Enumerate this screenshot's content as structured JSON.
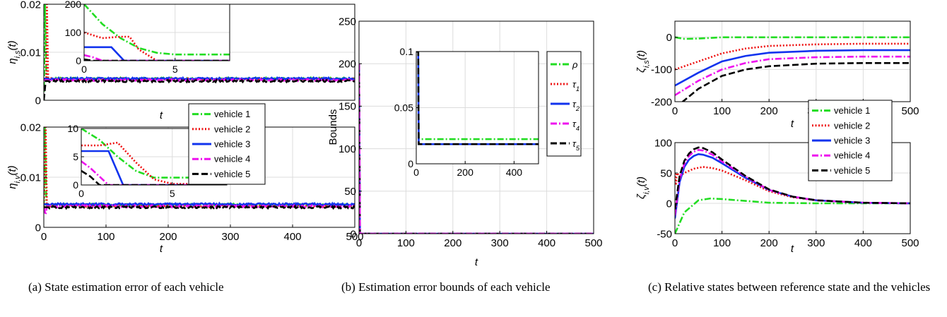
{
  "figure": {
    "captions": [
      "(a) State estimation error of each vehicle",
      "(b) Estimation error bounds of each vehicle",
      "(c) Relative states between reference state and the vehicles"
    ]
  },
  "colors": {
    "vehicle1": "#22dd22",
    "vehicle2": "#ee1111",
    "vehicle3": "#1133ee",
    "vehicle4": "#ee11ee",
    "vehicle5": "#000000",
    "grid": "#dcdcdc",
    "axis": "#000000"
  },
  "chart_data": [
    {
      "id": "a-top",
      "type": "line",
      "xlabel": "t",
      "ylabel": "η_{i,s}(t)",
      "xlim": [
        0,
        500
      ],
      "ylim": [
        0,
        0.02
      ],
      "xticks": [],
      "xtick_labels": [],
      "yticks": [
        0,
        0.01,
        0.02
      ],
      "ytick_labels": [
        "0",
        "0.01",
        "0.02"
      ],
      "grid": true,
      "series": [
        {
          "key": "vehicle1",
          "style": "dashdot",
          "x": [
            0,
            2,
            4,
            6,
            500
          ],
          "y": [
            0,
            0.02,
            0.0045,
            0.0045,
            0.0045
          ]
        },
        {
          "key": "vehicle2",
          "style": "dotted",
          "x": [
            0,
            4,
            5,
            7,
            500
          ],
          "y": [
            0.0045,
            0.0045,
            0.02,
            0.0044,
            0.0044
          ]
        },
        {
          "key": "vehicle3",
          "style": "solid",
          "x": [
            0,
            500
          ],
          "y": [
            0.0045,
            0.0045
          ]
        },
        {
          "key": "vehicle4",
          "style": "dashdot",
          "x": [
            0,
            500
          ],
          "y": [
            0.0042,
            0.0042
          ]
        },
        {
          "key": "vehicle5",
          "style": "dashed",
          "x": [
            0,
            3,
            500
          ],
          "y": [
            0,
            0.004,
            0.004
          ]
        }
      ],
      "noise": 0.0004,
      "inset": {
        "xlim": [
          0,
          8
        ],
        "ylim": [
          0,
          200
        ],
        "xticks": [
          0,
          5
        ],
        "xtick_labels": [
          "0",
          "5"
        ],
        "yticks": [
          0,
          100,
          200
        ],
        "ytick_labels": [
          "0",
          "100",
          "200"
        ],
        "series": [
          {
            "key": "vehicle1",
            "style": "dashdot",
            "x": [
              0,
              1,
              2,
              3,
              4,
              5,
              8
            ],
            "y": [
              200,
              130,
              80,
              45,
              28,
              22,
              22
            ]
          },
          {
            "key": "vehicle2",
            "style": "dotted",
            "x": [
              0,
              1,
              2,
              2.5,
              3,
              4,
              8
            ],
            "y": [
              100,
              80,
              85,
              85,
              40,
              0,
              0
            ]
          },
          {
            "key": "vehicle3",
            "style": "solid",
            "x": [
              0,
              1.5,
              2.2,
              8
            ],
            "y": [
              48,
              48,
              0,
              0
            ]
          },
          {
            "key": "vehicle4",
            "style": "dashdot",
            "x": [
              0,
              0.5,
              1,
              8
            ],
            "y": [
              20,
              12,
              0,
              0
            ]
          },
          {
            "key": "vehicle5",
            "style": "dashed",
            "x": [
              0,
              0.5,
              8
            ],
            "y": [
              5,
              0,
              0
            ]
          }
        ]
      }
    },
    {
      "id": "a-bottom",
      "type": "line",
      "xlabel": "t",
      "ylabel": "η_{i,v}(t)",
      "xlim": [
        0,
        500
      ],
      "ylim": [
        0,
        0.02
      ],
      "xticks": [
        0,
        100,
        200,
        300,
        400,
        500
      ],
      "xtick_labels": [
        "0",
        "100",
        "200",
        "300",
        "400",
        "500"
      ],
      "yticks": [
        0,
        0.01,
        0.02
      ],
      "ytick_labels": [
        "0",
        "0.01",
        "0.02"
      ],
      "grid": true,
      "legend": [
        "vehicle 1",
        "vehicle 2",
        "vehicle 3",
        "vehicle 4",
        "vehicle 5"
      ],
      "legend_keys": [
        "vehicle1",
        "vehicle2",
        "vehicle3",
        "vehicle4",
        "vehicle5"
      ],
      "legend_styles": [
        "dashdot",
        "dotted",
        "solid",
        "dashdot",
        "dashed"
      ],
      "legend_placement": "right, spanning both panels",
      "series": [
        {
          "key": "vehicle1",
          "style": "dashdot",
          "x": [
            0,
            2,
            4,
            500
          ],
          "y": [
            0.004,
            0.02,
            0.0045,
            0.0045
          ]
        },
        {
          "key": "vehicle2",
          "style": "dotted",
          "x": [
            0,
            3,
            5,
            500
          ],
          "y": [
            0.004,
            0.02,
            0.0043,
            0.0043
          ]
        },
        {
          "key": "vehicle3",
          "style": "solid",
          "x": [
            0,
            500
          ],
          "y": [
            0.0046,
            0.0046
          ]
        },
        {
          "key": "vehicle4",
          "style": "dashdot",
          "x": [
            0,
            3,
            5,
            500
          ],
          "y": [
            0.004,
            0.0025,
            0.0042,
            0.0042
          ]
        },
        {
          "key": "vehicle5",
          "style": "dashed",
          "x": [
            0,
            500
          ],
          "y": [
            0.004,
            0.004
          ]
        }
      ],
      "noise": 0.0004,
      "inset": {
        "xlim": [
          0,
          8
        ],
        "ylim": [
          0,
          10
        ],
        "xticks": [
          0,
          5
        ],
        "xtick_labels": [
          "0",
          "5"
        ],
        "yticks": [
          0,
          5,
          10
        ],
        "ytick_labels": [
          "0",
          "5",
          "10"
        ],
        "series": [
          {
            "key": "vehicle1",
            "style": "dashdot",
            "x": [
              0,
              1,
              2,
              3,
              4,
              8
            ],
            "y": [
              10,
              8,
              5,
              2.5,
              1.3,
              1.3
            ]
          },
          {
            "key": "vehicle2",
            "style": "dotted",
            "x": [
              0,
              1,
              2,
              3,
              4,
              5,
              8
            ],
            "y": [
              7,
              7,
              7.5,
              4,
              1,
              0.2,
              0.2
            ]
          },
          {
            "key": "vehicle3",
            "style": "solid",
            "x": [
              0,
              1.5,
              2.3,
              8
            ],
            "y": [
              6,
              6,
              0,
              0
            ]
          },
          {
            "key": "vehicle4",
            "style": "dashdot",
            "x": [
              0,
              0.5,
              1.5,
              8
            ],
            "y": [
              4.2,
              3,
              0,
              0
            ]
          },
          {
            "key": "vehicle5",
            "style": "dashed",
            "x": [
              0,
              0.5,
              1,
              8
            ],
            "y": [
              2.5,
              1.5,
              0,
              0
            ]
          }
        ]
      }
    },
    {
      "id": "b",
      "type": "line",
      "xlabel": "t",
      "ylabel": "Bounds",
      "xlim": [
        0,
        500
      ],
      "ylim": [
        0,
        250
      ],
      "xticks": [
        0,
        100,
        200,
        300,
        400,
        500
      ],
      "xtick_labels": [
        "0",
        "100",
        "200",
        "300",
        "400",
        "500"
      ],
      "yticks": [
        0,
        50,
        100,
        150,
        200,
        250
      ],
      "ytick_labels": [
        "0",
        "50",
        "100",
        "150",
        "200",
        "250"
      ],
      "grid": true,
      "legend": [
        "ρ",
        "τ_1",
        "τ_2",
        "τ_4",
        "τ_5"
      ],
      "legend_keys": [
        "vehicle1",
        "vehicle2",
        "vehicle3",
        "vehicle4",
        "vehicle5"
      ],
      "legend_styles": [
        "dashdot",
        "dotted",
        "solid",
        "dashdot",
        "dashed"
      ],
      "legend_placement": "right",
      "series": [
        {
          "key": "vehicle1",
          "style": "dashdot",
          "x": [
            0,
            2,
            500
          ],
          "y": [
            200,
            0,
            0
          ]
        },
        {
          "key": "vehicle2",
          "style": "dotted",
          "x": [
            0,
            2,
            500
          ],
          "y": [
            200,
            0,
            0
          ]
        },
        {
          "key": "vehicle3",
          "style": "solid",
          "x": [
            0,
            2,
            500
          ],
          "y": [
            200,
            0,
            0
          ]
        },
        {
          "key": "vehicle5",
          "style": "dashed",
          "x": [
            0,
            2,
            500
          ],
          "y": [
            200,
            0,
            0
          ]
        },
        {
          "key": "vehicle4",
          "style": "dashdot",
          "x": [
            0,
            2,
            500
          ],
          "y": [
            200,
            0,
            0
          ]
        }
      ],
      "inset": {
        "xlim": [
          0,
          500
        ],
        "ylim": [
          0,
          0.1
        ],
        "xticks": [
          0,
          200,
          400
        ],
        "xtick_labels": [
          "0",
          "200",
          "400"
        ],
        "yticks": [
          0,
          0.05,
          0.1
        ],
        "ytick_labels": [
          "0",
          "0.05",
          "0.1"
        ],
        "series": [
          {
            "key": "vehicle1",
            "style": "dashdot",
            "x": [
              0,
              8,
              10,
              500
            ],
            "y": [
              0.1,
              0.1,
              0.022,
              0.022
            ]
          },
          {
            "key": "vehicle3",
            "style": "solid",
            "x": [
              0,
              8,
              10,
              500
            ],
            "y": [
              0.1,
              0.1,
              0.0175,
              0.0175
            ]
          },
          {
            "key": "vehicle5",
            "style": "dashed",
            "x": [
              0,
              8,
              10,
              500
            ],
            "y": [
              0.1,
              0.1,
              0.0175,
              0.0175
            ]
          }
        ]
      }
    },
    {
      "id": "c-top",
      "type": "line",
      "xlabel": "t",
      "ylabel": "ζ_{i,s}(t)",
      "xlim": [
        0,
        500
      ],
      "ylim": [
        -200,
        50
      ],
      "xticks": [
        0,
        100,
        200,
        300,
        400,
        500
      ],
      "xtick_labels": [
        "0",
        "100",
        "200",
        "300",
        "400",
        "500"
      ],
      "yticks": [
        -200,
        -100,
        0
      ],
      "ytick_labels": [
        "-200",
        "-100",
        "0"
      ],
      "grid": true,
      "series": [
        {
          "key": "vehicle1",
          "style": "dashdot",
          "x": [
            0,
            20,
            50,
            100,
            200,
            300,
            500
          ],
          "y": [
            0,
            -5,
            -4,
            0,
            0,
            0,
            0
          ]
        },
        {
          "key": "vehicle2",
          "style": "dotted",
          "x": [
            0,
            50,
            100,
            150,
            200,
            300,
            400,
            500
          ],
          "y": [
            -100,
            -75,
            -50,
            -35,
            -27,
            -22,
            -20,
            -20
          ]
        },
        {
          "key": "vehicle3",
          "style": "solid",
          "x": [
            0,
            50,
            100,
            150,
            200,
            300,
            400,
            500
          ],
          "y": [
            -150,
            -110,
            -75,
            -58,
            -48,
            -42,
            -40,
            -40
          ]
        },
        {
          "key": "vehicle4",
          "style": "dashdot",
          "x": [
            0,
            50,
            100,
            150,
            200,
            300,
            400,
            500
          ],
          "y": [
            -180,
            -135,
            -100,
            -80,
            -68,
            -62,
            -60,
            -60
          ]
        },
        {
          "key": "vehicle5",
          "style": "dashed",
          "x": [
            0,
            50,
            100,
            150,
            200,
            300,
            400,
            500
          ],
          "y": [
            -220,
            -160,
            -120,
            -100,
            -90,
            -82,
            -80,
            -80
          ]
        }
      ]
    },
    {
      "id": "c-bottom",
      "type": "line",
      "xlabel": "t",
      "ylabel": "ζ_{i,v}(t)",
      "xlim": [
        0,
        500
      ],
      "ylim": [
        -50,
        100
      ],
      "xticks": [
        0,
        100,
        200,
        300,
        400,
        500
      ],
      "xtick_labels": [
        "0",
        "100",
        "200",
        "300",
        "400",
        "500"
      ],
      "yticks": [
        -50,
        0,
        50,
        100
      ],
      "ytick_labels": [
        "-50",
        "0",
        "50",
        "100"
      ],
      "grid": true,
      "legend": [
        "vehicle 1",
        "vehicle 2",
        "vehicle 3",
        "vehicle 4",
        "vehicle 5"
      ],
      "legend_keys": [
        "vehicle1",
        "vehicle2",
        "vehicle3",
        "vehicle4",
        "vehicle5"
      ],
      "legend_styles": [
        "dashdot",
        "dotted",
        "solid",
        "dashdot",
        "dashed"
      ],
      "legend_placement": "right, spanning both panels",
      "series": [
        {
          "key": "vehicle1",
          "style": "dashdot",
          "x": [
            0,
            20,
            50,
            75,
            100,
            150,
            200,
            300,
            500
          ],
          "y": [
            -50,
            -15,
            5,
            8,
            7,
            4,
            1,
            0,
            0
          ]
        },
        {
          "key": "vehicle2",
          "style": "dotted",
          "x": [
            0,
            2,
            4,
            10,
            20,
            40,
            60,
            80,
            100,
            150,
            200,
            250,
            300,
            400,
            500
          ],
          "y": [
            50,
            30,
            50,
            45,
            50,
            57,
            60,
            58,
            54,
            38,
            20,
            10,
            5,
            1,
            0
          ]
        },
        {
          "key": "vehicle3",
          "style": "solid",
          "x": [
            0,
            10,
            20,
            30,
            40,
            50,
            60,
            80,
            100,
            150,
            200,
            250,
            300,
            400,
            500
          ],
          "y": [
            -25,
            35,
            60,
            72,
            78,
            81,
            80,
            75,
            66,
            42,
            22,
            11,
            5,
            1,
            0
          ]
        },
        {
          "key": "vehicle4",
          "style": "dashdot",
          "x": [
            0,
            10,
            20,
            30,
            40,
            50,
            60,
            80,
            100,
            150,
            200,
            250,
            300,
            400,
            500
          ],
          "y": [
            -20,
            40,
            65,
            78,
            85,
            88,
            87,
            80,
            69,
            44,
            22,
            11,
            5,
            1,
            0
          ]
        },
        {
          "key": "vehicle5",
          "style": "dashed",
          "x": [
            0,
            10,
            20,
            30,
            40,
            50,
            60,
            80,
            100,
            150,
            200,
            250,
            300,
            400,
            500
          ],
          "y": [
            -10,
            45,
            70,
            82,
            89,
            92,
            91,
            84,
            72,
            45,
            23,
            11,
            5,
            1,
            0
          ]
        }
      ]
    }
  ]
}
